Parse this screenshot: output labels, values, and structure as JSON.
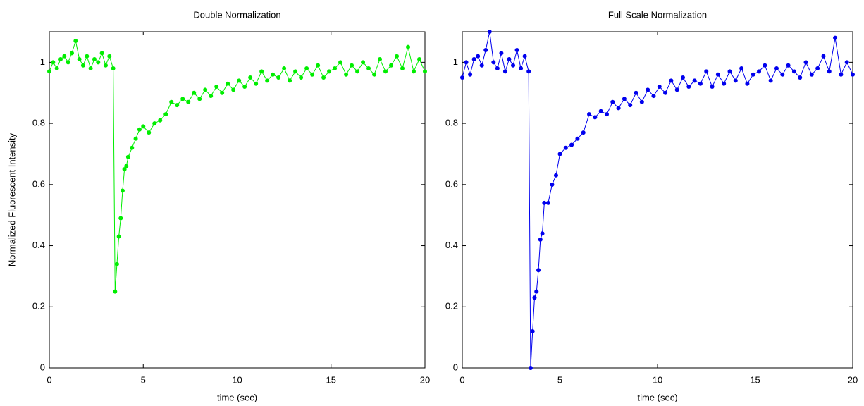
{
  "chart_data": [
    {
      "type": "line",
      "title": "Double Normalization",
      "xlabel": "time (sec)",
      "ylabel": "Normalized Fluorescent Intensity",
      "color": "#00ee00",
      "x": [
        0,
        0.2,
        0.4,
        0.6,
        0.8,
        1,
        1.2,
        1.4,
        1.6,
        1.8,
        2,
        2.2,
        2.4,
        2.6,
        2.8,
        3,
        3.2,
        3.4,
        3.5,
        3.6,
        3.7,
        3.8,
        3.9,
        4,
        4.1,
        4.2,
        4.4,
        4.6,
        4.8,
        5,
        5.3,
        5.6,
        5.9,
        6.2,
        6.5,
        6.8,
        7.1,
        7.4,
        7.7,
        8,
        8.3,
        8.6,
        8.9,
        9.2,
        9.5,
        9.8,
        10.1,
        10.4,
        10.7,
        11,
        11.3,
        11.6,
        11.9,
        12.2,
        12.5,
        12.8,
        13.1,
        13.4,
        13.7,
        14,
        14.3,
        14.6,
        14.9,
        15.2,
        15.5,
        15.8,
        16.1,
        16.4,
        16.7,
        17,
        17.3,
        17.6,
        17.9,
        18.2,
        18.5,
        18.8,
        19.1,
        19.4,
        19.7,
        20
      ],
      "values": [
        0.97,
        1.0,
        0.98,
        1.01,
        1.02,
        1.0,
        1.03,
        1.07,
        1.01,
        0.99,
        1.02,
        0.98,
        1.01,
        1.0,
        1.03,
        0.99,
        1.02,
        0.98,
        0.25,
        0.34,
        0.43,
        0.49,
        0.58,
        0.65,
        0.66,
        0.69,
        0.72,
        0.75,
        0.78,
        0.79,
        0.77,
        0.8,
        0.81,
        0.83,
        0.87,
        0.86,
        0.88,
        0.87,
        0.9,
        0.88,
        0.91,
        0.89,
        0.92,
        0.9,
        0.93,
        0.91,
        0.94,
        0.92,
        0.95,
        0.93,
        0.97,
        0.94,
        0.96,
        0.95,
        0.98,
        0.94,
        0.97,
        0.95,
        0.98,
        0.96,
        0.99,
        0.95,
        0.97,
        0.98,
        1.0,
        0.96,
        0.99,
        0.97,
        1.0,
        0.98,
        0.96,
        1.01,
        0.97,
        0.99,
        1.02,
        0.98,
        1.05,
        0.97,
        1.01,
        0.97
      ],
      "xlim": [
        0,
        20
      ],
      "xticks": [
        0,
        5,
        10,
        15,
        20
      ],
      "ylim": [
        0,
        1.1
      ],
      "yticks": [
        0,
        0.2,
        0.4,
        0.6,
        0.8,
        1
      ]
    },
    {
      "type": "line",
      "title": "Full Scale Normalization",
      "xlabel": "time (sec)",
      "color": "#0000ee",
      "x": [
        0,
        0.2,
        0.4,
        0.6,
        0.8,
        1,
        1.2,
        1.4,
        1.6,
        1.8,
        2,
        2.2,
        2.4,
        2.6,
        2.8,
        3,
        3.2,
        3.4,
        3.5,
        3.6,
        3.7,
        3.8,
        3.9,
        4,
        4.1,
        4.2,
        4.4,
        4.6,
        4.8,
        5,
        5.3,
        5.6,
        5.9,
        6.2,
        6.5,
        6.8,
        7.1,
        7.4,
        7.7,
        8,
        8.3,
        8.6,
        8.9,
        9.2,
        9.5,
        9.8,
        10.1,
        10.4,
        10.7,
        11,
        11.3,
        11.6,
        11.9,
        12.2,
        12.5,
        12.8,
        13.1,
        13.4,
        13.7,
        14,
        14.3,
        14.6,
        14.9,
        15.2,
        15.5,
        15.8,
        16.1,
        16.4,
        16.7,
        17,
        17.3,
        17.6,
        17.9,
        18.2,
        18.5,
        18.8,
        19.1,
        19.4,
        19.7,
        20
      ],
      "values": [
        0.95,
        1.0,
        0.96,
        1.01,
        1.02,
        0.99,
        1.04,
        1.1,
        1.0,
        0.98,
        1.03,
        0.97,
        1.01,
        0.99,
        1.04,
        0.98,
        1.02,
        0.97,
        0,
        0.12,
        0.23,
        0.25,
        0.32,
        0.42,
        0.44,
        0.54,
        0.54,
        0.6,
        0.63,
        0.7,
        0.72,
        0.73,
        0.75,
        0.77,
        0.83,
        0.82,
        0.84,
        0.83,
        0.87,
        0.85,
        0.88,
        0.86,
        0.9,
        0.87,
        0.91,
        0.89,
        0.92,
        0.9,
        0.94,
        0.91,
        0.95,
        0.92,
        0.94,
        0.93,
        0.97,
        0.92,
        0.96,
        0.93,
        0.97,
        0.94,
        0.98,
        0.93,
        0.96,
        0.97,
        0.99,
        0.94,
        0.98,
        0.96,
        0.99,
        0.97,
        0.95,
        1.0,
        0.96,
        0.98,
        1.02,
        0.97,
        1.08,
        0.96,
        1.0,
        0.96
      ],
      "xlim": [
        0,
        20
      ],
      "xticks": [
        0,
        5,
        10,
        15,
        20
      ],
      "ylim": [
        0,
        1.1
      ],
      "yticks": [
        0,
        0.2,
        0.4,
        0.6,
        0.8,
        1
      ]
    }
  ]
}
